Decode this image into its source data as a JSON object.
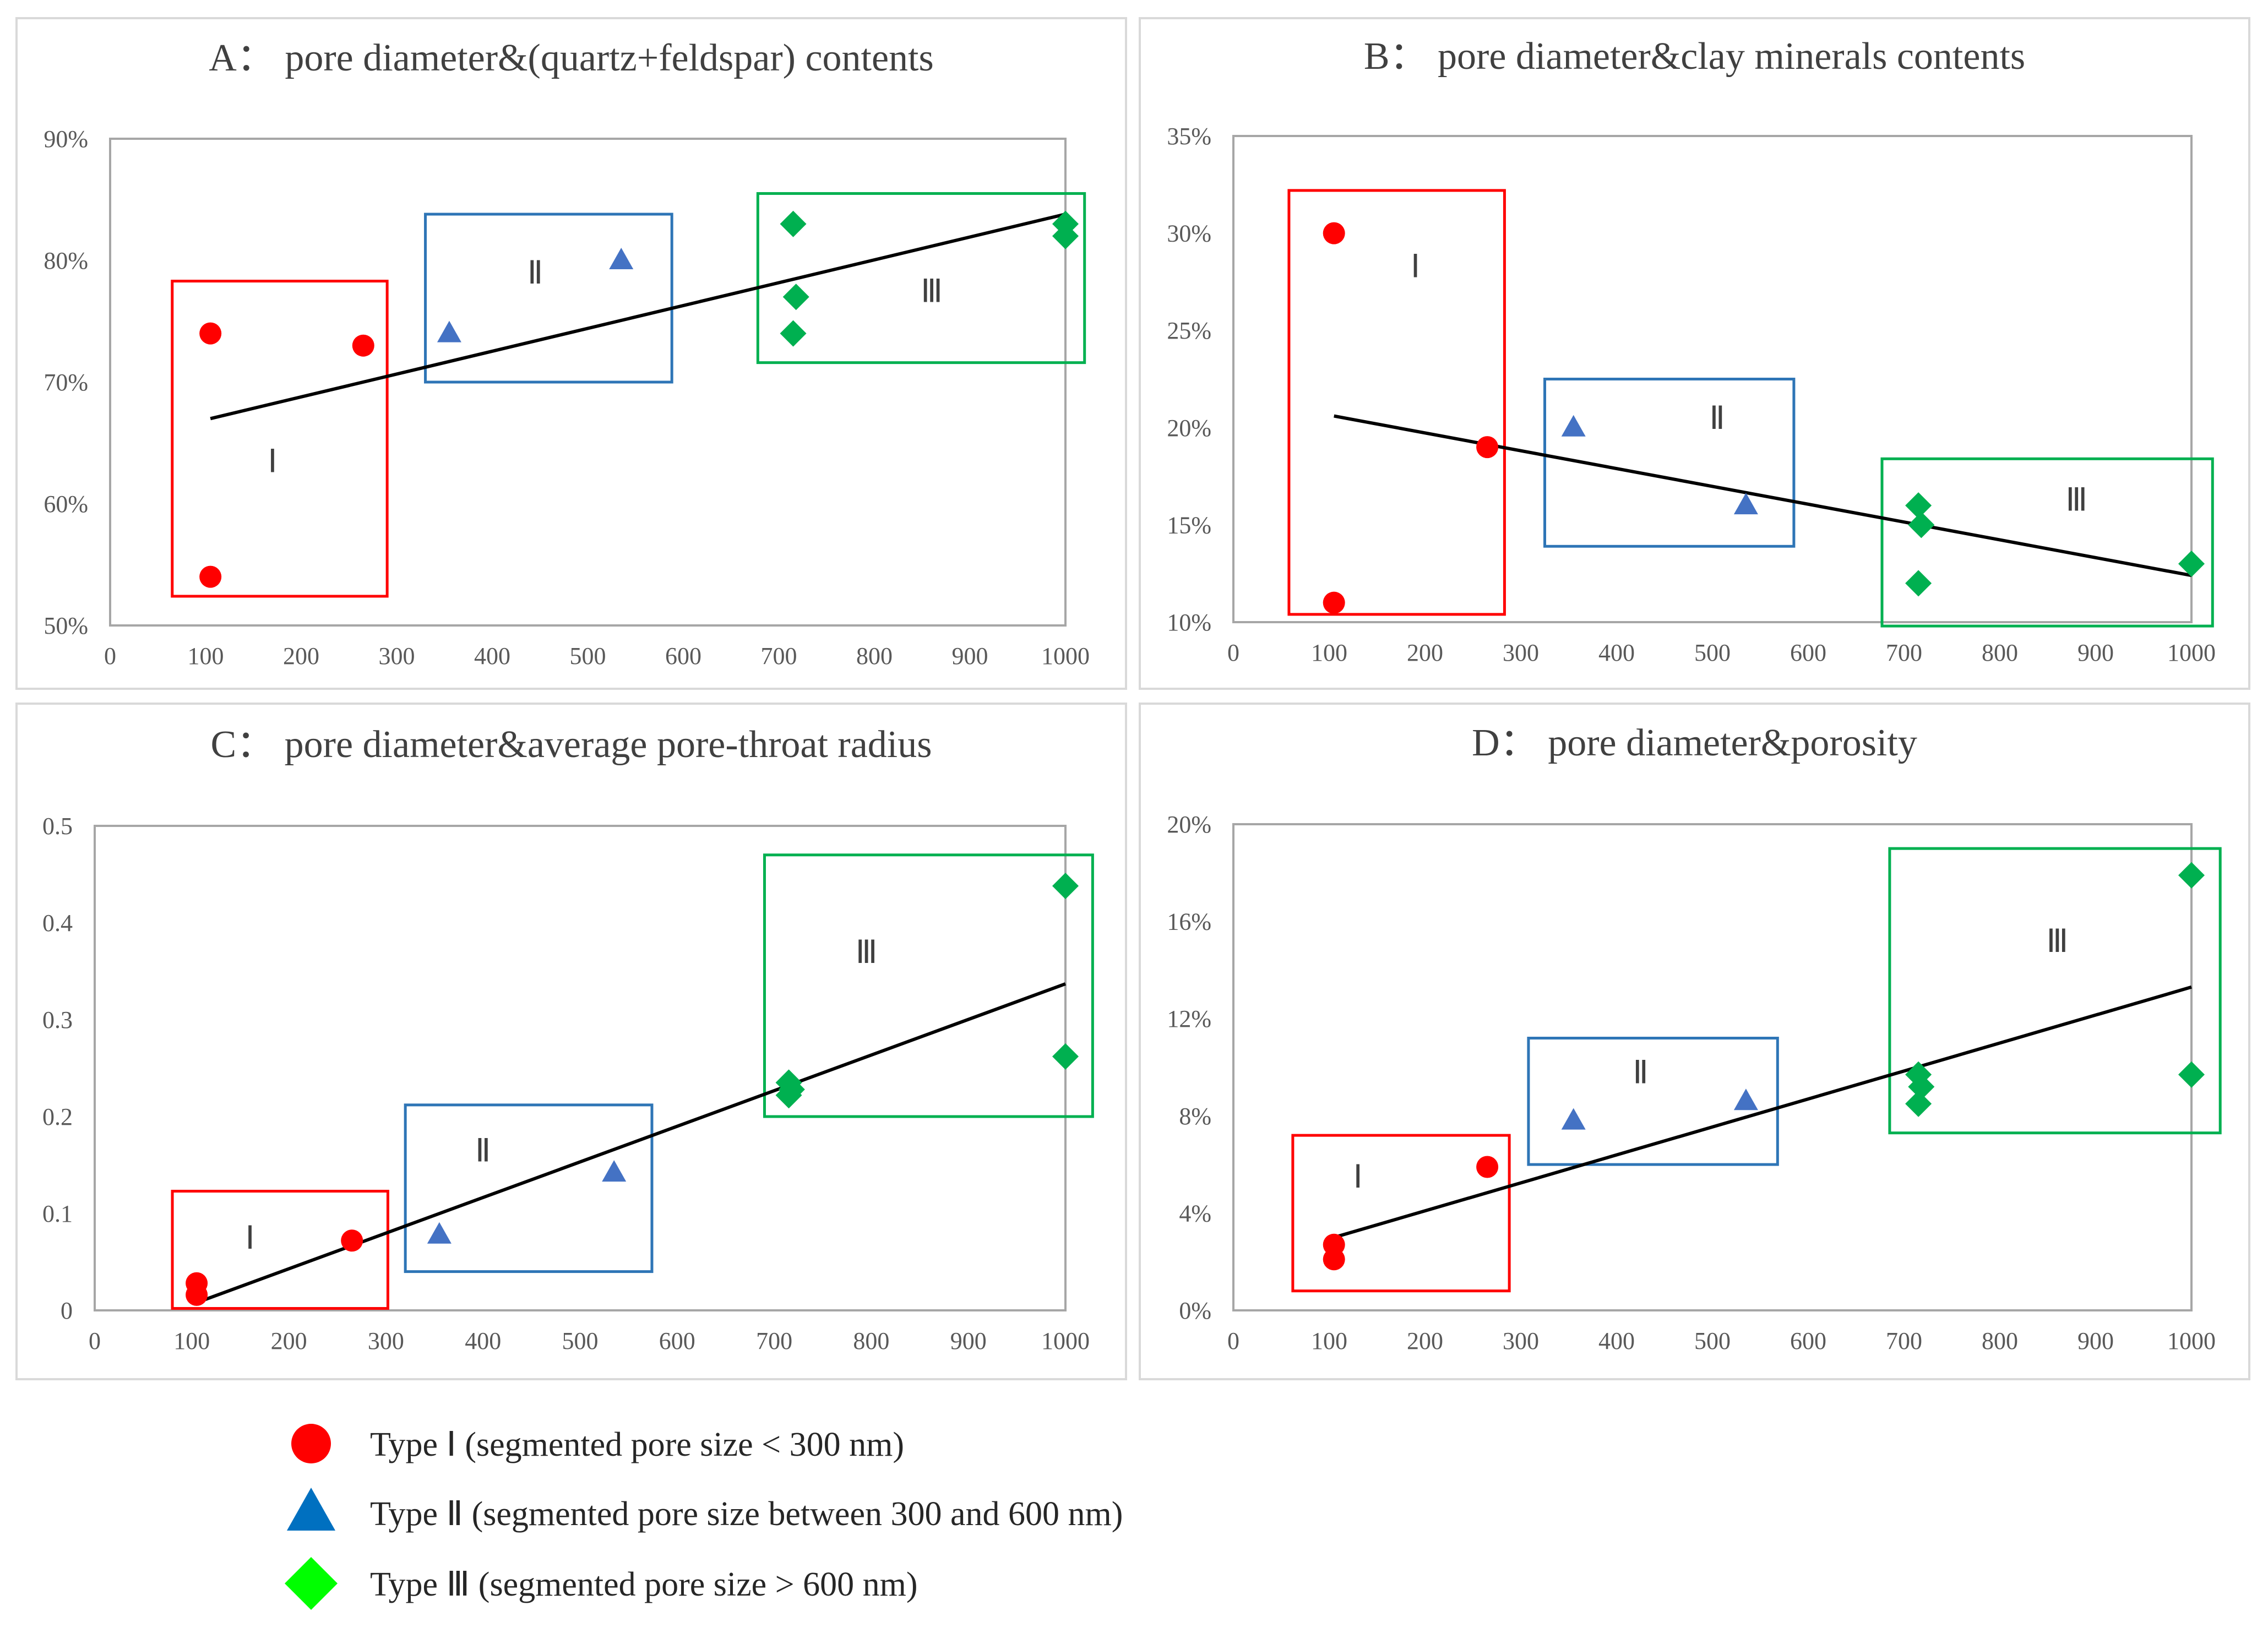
{
  "chart_data": [
    {
      "type": "scatter",
      "title": "A：  pore diameter&(quartz+feldspar) contents",
      "xlabel": "",
      "ylabel": "",
      "xlim": [
        0,
        1000
      ],
      "ylim": [
        0.5,
        0.9
      ],
      "x_ticks": [
        "0",
        "100",
        "200",
        "300",
        "400",
        "500",
        "600",
        "700",
        "800",
        "900",
        "1000"
      ],
      "y_ticks": [
        "50%",
        "60%",
        "70%",
        "80%",
        "90%"
      ],
      "series": [
        {
          "name": "Type Ⅰ",
          "marker": "circle",
          "color": "#ff0000",
          "points": [
            [
              105,
              0.74
            ],
            [
              105,
              0.54
            ],
            [
              265,
              0.73
            ]
          ]
        },
        {
          "name": "Type Ⅱ",
          "marker": "triangle",
          "color": "#4472c4",
          "points": [
            [
              355,
              0.74
            ],
            [
              535,
              0.8
            ]
          ]
        },
        {
          "name": "Type Ⅲ",
          "marker": "diamond",
          "color": "#00b050",
          "points": [
            [
              715,
              0.83
            ],
            [
              718,
              0.77
            ],
            [
              715,
              0.74
            ],
            [
              1000,
              0.83
            ],
            [
              1000,
              0.82
            ]
          ]
        }
      ],
      "trendline": [
        [
          105,
          0.67
        ],
        [
          1000,
          0.838
        ]
      ],
      "regions": [
        {
          "label": "Ⅰ",
          "color": "#ff0000",
          "x": [
            65,
            290
          ],
          "y": [
            0.524,
            0.783
          ],
          "label_at": [
            170,
            0.635
          ]
        },
        {
          "label": "Ⅱ",
          "color": "#2e75b6",
          "x": [
            330,
            588
          ],
          "y": [
            0.7,
            0.838
          ],
          "label_at": [
            445,
            0.79
          ]
        },
        {
          "label": "Ⅲ",
          "color": "#00b050",
          "x": [
            678,
            1020
          ],
          "y": [
            0.716,
            0.855
          ],
          "label_at": [
            860,
            0.775
          ]
        }
      ]
    },
    {
      "type": "scatter",
      "title": "B：  pore diameter&clay minerals contents",
      "xlabel": "",
      "ylabel": "",
      "xlim": [
        0,
        1000
      ],
      "ylim": [
        0.1,
        0.35
      ],
      "x_ticks": [
        "0",
        "100",
        "200",
        "300",
        "400",
        "500",
        "600",
        "700",
        "800",
        "900",
        "1000"
      ],
      "y_ticks": [
        "10%",
        "15%",
        "20%",
        "25%",
        "30%",
        "35%"
      ],
      "series": [
        {
          "name": "Type Ⅰ",
          "marker": "circle",
          "color": "#ff0000",
          "points": [
            [
              105,
              0.3
            ],
            [
              105,
              0.11
            ],
            [
              265,
              0.19
            ]
          ]
        },
        {
          "name": "Type Ⅱ",
          "marker": "triangle",
          "color": "#4472c4",
          "points": [
            [
              355,
              0.2
            ],
            [
              535,
              0.16
            ]
          ]
        },
        {
          "name": "Type Ⅲ",
          "marker": "diamond",
          "color": "#00b050",
          "points": [
            [
              715,
              0.16
            ],
            [
              718,
              0.15
            ],
            [
              715,
              0.12
            ],
            [
              1000,
              0.13
            ]
          ]
        }
      ],
      "trendline": [
        [
          105,
          0.206
        ],
        [
          1000,
          0.124
        ]
      ],
      "regions": [
        {
          "label": "Ⅰ",
          "color": "#ff0000",
          "x": [
            58,
            283
          ],
          "y": [
            0.104,
            0.322
          ],
          "label_at": [
            190,
            0.283
          ]
        },
        {
          "label": "Ⅱ",
          "color": "#2e75b6",
          "x": [
            325,
            585
          ],
          "y": [
            0.139,
            0.225
          ],
          "label_at": [
            505,
            0.205
          ]
        },
        {
          "label": "Ⅲ",
          "color": "#00b050",
          "x": [
            677,
            1022
          ],
          "y": [
            0.098,
            0.184
          ],
          "label_at": [
            880,
            0.163
          ]
        }
      ]
    },
    {
      "type": "scatter",
      "title": "C：  pore diameter&average pore-throat radius",
      "xlabel": "",
      "ylabel": "",
      "xlim": [
        0,
        1000
      ],
      "ylim": [
        0,
        0.5
      ],
      "x_ticks": [
        "0",
        "100",
        "200",
        "300",
        "400",
        "500",
        "600",
        "700",
        "800",
        "900",
        "1000"
      ],
      "y_ticks": [
        "0",
        "0.1",
        "0.2",
        "0.3",
        "0.4",
        "0.5"
      ],
      "series": [
        {
          "name": "Type Ⅰ",
          "marker": "circle",
          "color": "#ff0000",
          "points": [
            [
              105,
              0.028
            ],
            [
              105,
              0.016
            ],
            [
              265,
              0.072
            ]
          ]
        },
        {
          "name": "Type Ⅱ",
          "marker": "triangle",
          "color": "#4472c4",
          "points": [
            [
              355,
              0.078
            ],
            [
              535,
              0.142
            ]
          ]
        },
        {
          "name": "Type Ⅲ",
          "marker": "diamond",
          "color": "#00b050",
          "points": [
            [
              715,
              0.235
            ],
            [
              718,
              0.228
            ],
            [
              715,
              0.222
            ],
            [
              1000,
              0.438
            ],
            [
              1000,
              0.262
            ]
          ]
        }
      ],
      "trendline": [
        [
          105,
          0.008
        ],
        [
          1000,
          0.337
        ]
      ],
      "regions": [
        {
          "label": "Ⅰ",
          "color": "#ff0000",
          "x": [
            80,
            302
          ],
          "y": [
            0.002,
            0.123
          ],
          "label_at": [
            160,
            0.075
          ]
        },
        {
          "label": "Ⅱ",
          "color": "#2e75b6",
          "x": [
            320,
            574
          ],
          "y": [
            0.04,
            0.212
          ],
          "label_at": [
            400,
            0.165
          ]
        },
        {
          "label": "Ⅲ",
          "color": "#00b050",
          "x": [
            690,
            1028
          ],
          "y": [
            0.2,
            0.47
          ],
          "label_at": [
            795,
            0.37
          ]
        }
      ]
    },
    {
      "type": "scatter",
      "title": "D：  pore diameter&porosity",
      "xlabel": "",
      "ylabel": "",
      "xlim": [
        0,
        1000
      ],
      "ylim": [
        0,
        0.2
      ],
      "x_ticks": [
        "0",
        "100",
        "200",
        "300",
        "400",
        "500",
        "600",
        "700",
        "800",
        "900",
        "1000"
      ],
      "y_ticks": [
        "0%",
        "4%",
        "8%",
        "12%",
        "16%",
        "20%"
      ],
      "series": [
        {
          "name": "Type Ⅰ",
          "marker": "circle",
          "color": "#ff0000",
          "points": [
            [
              105,
              0.027
            ],
            [
              105,
              0.021
            ],
            [
              265,
              0.059
            ]
          ]
        },
        {
          "name": "Type Ⅱ",
          "marker": "triangle",
          "color": "#4472c4",
          "points": [
            [
              355,
              0.078
            ],
            [
              535,
              0.086
            ]
          ]
        },
        {
          "name": "Type Ⅲ",
          "marker": "diamond",
          "color": "#00b050",
          "points": [
            [
              715,
              0.097
            ],
            [
              718,
              0.092
            ],
            [
              715,
              0.085
            ],
            [
              1000,
              0.179
            ],
            [
              1000,
              0.097
            ]
          ]
        }
      ],
      "trendline": [
        [
          105,
          0.03
        ],
        [
          1000,
          0.133
        ]
      ],
      "regions": [
        {
          "label": "Ⅰ",
          "color": "#ff0000",
          "x": [
            62,
            288
          ],
          "y": [
            0.008,
            0.072
          ],
          "label_at": [
            130,
            0.055
          ]
        },
        {
          "label": "Ⅱ",
          "color": "#2e75b6",
          "x": [
            308,
            568
          ],
          "y": [
            0.06,
            0.112
          ],
          "label_at": [
            425,
            0.098
          ]
        },
        {
          "label": "Ⅲ",
          "color": "#00b050",
          "x": [
            685,
            1030
          ],
          "y": [
            0.073,
            0.19
          ],
          "label_at": [
            860,
            0.152
          ]
        }
      ]
    }
  ],
  "legend": [
    {
      "label": "Type  Ⅰ  (segmented pore size < 300 nm)",
      "marker": "circle",
      "color": "#ff0000"
    },
    {
      "label": "Type  Ⅱ (segmented pore size between 300 and 600 nm)",
      "marker": "triangle",
      "color": "#0070c0"
    },
    {
      "label": "Type  Ⅲ (segmented pore size > 600 nm)",
      "marker": "diamond",
      "color": "#00ff00"
    }
  ],
  "colors": {
    "plot_border": "#a6a6a6",
    "panel_border": "#d9d9d9",
    "trendline": "#000000"
  }
}
